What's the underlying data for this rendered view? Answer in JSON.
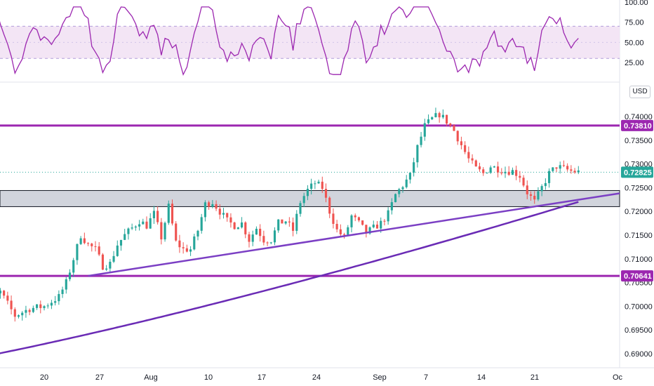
{
  "chart_data": {
    "type": "candlestick",
    "axis_unit": "USD",
    "price_axis_ticks": [
      "0.69000",
      "0.69500",
      "0.70000",
      "0.70500",
      "0.71000",
      "0.71500",
      "0.72000",
      "0.72500",
      "0.73000",
      "0.73500",
      "0.74000"
    ],
    "rsi_axis_ticks": [
      "25.00",
      "50.00",
      "75.00",
      "100.00"
    ],
    "x_ticks": [
      "20",
      "27",
      "Aug",
      "10",
      "17",
      "24",
      "Sep",
      "7",
      "14",
      "21",
      "Oc"
    ],
    "price_tags": [
      {
        "value": "0.73810",
        "role": "resistance",
        "color": "#9c27b0"
      },
      {
        "value": "0.72825",
        "role": "last",
        "color": "#26a69a"
      },
      {
        "value": "0.70641",
        "role": "support",
        "color": "#9c27b0"
      }
    ],
    "horizontal_levels": [
      0.7381,
      0.70641
    ],
    "zone": {
      "top": 0.7244,
      "bottom": 0.721
    },
    "last_price": 0.72825,
    "trendline": {
      "start": {
        "date": "Jul 26",
        "price": 0.70641
      },
      "end": {
        "date": "Sep 30",
        "price": 0.7238
      }
    },
    "rsi_band": {
      "upper": 70,
      "lower": 30
    },
    "moving_average": {
      "start": 0.6892,
      "end": 0.722
    },
    "price_ylim": [
      0.6885,
      0.7423
    ],
    "rsi_ylim": [
      0,
      100
    ],
    "colors": {
      "up": "#26a69a",
      "down": "#ef5350",
      "level": "#9c27b0",
      "rsi": "#9c27b0",
      "band": "#f3e5f5",
      "ma": "#6a2bb5",
      "trend": "#7b3fc4",
      "zone": "#d1d4dc"
    }
  }
}
